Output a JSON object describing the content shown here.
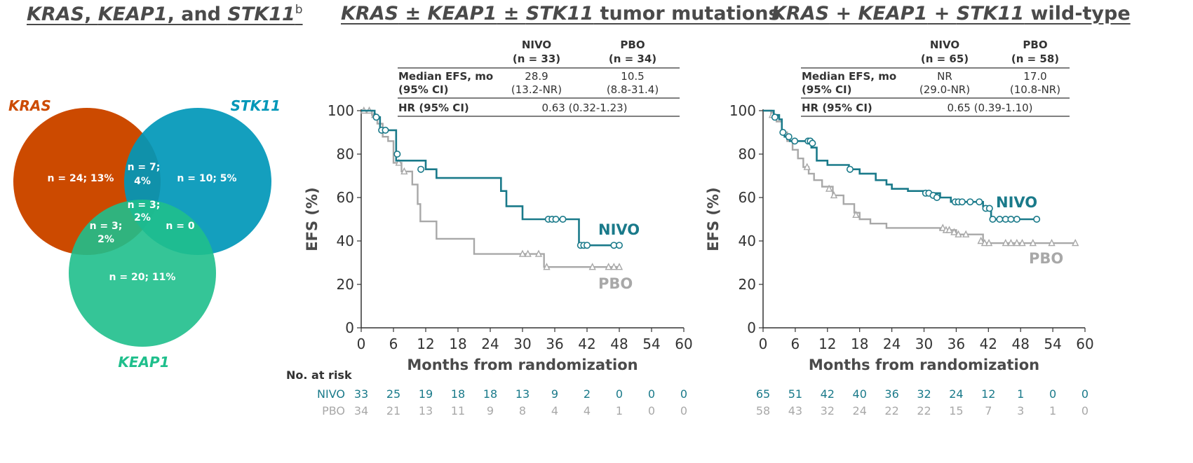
{
  "titles": {
    "venn": {
      "p1": "KRAS",
      "s1": ", ",
      "p2": "KEAP1",
      "s2": ", and ",
      "p3": "STK11",
      "sup": "b"
    },
    "km1": {
      "p1": "KRAS",
      "s1": " ± ",
      "p2": "KEAP1",
      "s2": " ± ",
      "p3": "STK11",
      "s3": " tumor mutations"
    },
    "km2": {
      "p1": "KRAS",
      "s1": " + ",
      "p2": "KEAP1",
      "s2": " + ",
      "p3": "STK11",
      "s3": " wild-type"
    }
  },
  "venn": {
    "labels": {
      "kras": "KRAS",
      "stk11": "STK11",
      "keap1": "KEAP1"
    },
    "regions": {
      "kras_only": "n = 24; 13%",
      "stk11_only": "n = 10; 5%",
      "keap1_only": "n = 20; 11%",
      "kras_stk11_a": "n = 7;",
      "kras_stk11_b": "4%",
      "all3_a": "n = 3;",
      "all3_b": "2%",
      "kras_keap1_a": "n = 3;",
      "kras_keap1_b": "2%",
      "stk11_keap1": "n = 0"
    },
    "colors": {
      "kras": "#cc4a00",
      "stk11": "#0097b8",
      "keap1": "#1fbf8c"
    }
  },
  "colors": {
    "nivo": "#1a7a8a",
    "pbo": "#a8a8a8"
  },
  "chart_data": [
    {
      "type": "line",
      "xlabel": "Months from randomization",
      "ylabel": "EFS (%)",
      "xlim": [
        0,
        60
      ],
      "ylim": [
        0,
        100
      ],
      "xticks": [
        0,
        6,
        12,
        18,
        24,
        30,
        36,
        42,
        48,
        54,
        60
      ],
      "yticks": [
        0,
        20,
        40,
        60,
        80,
        100
      ],
      "table": {
        "headers": [
          "NIVO",
          "PBO"
        ],
        "ns": [
          "(n = 33)",
          "(n = 34)"
        ],
        "row1_label_a": "Median EFS, mo",
        "row1_label_b": "(95% CI)",
        "median": [
          "28.9",
          "10.5"
        ],
        "ci": [
          "(13.2-NR)",
          "(8.8-31.4)"
        ],
        "hr_label": "HR (95% CI)",
        "hr": "0.63 (0.32-1.23)"
      },
      "series": [
        {
          "name": "NIVO",
          "x": [
            0,
            2,
            2.5,
            3.5,
            6,
            6.5,
            6.5,
            12,
            14,
            23,
            26,
            27,
            30,
            40,
            40.5,
            48
          ],
          "y": [
            100,
            100,
            97,
            91,
            91,
            80,
            77,
            73,
            69,
            69,
            63,
            56,
            50,
            50,
            38,
            38
          ],
          "censor_x": [
            2.8,
            3.8,
            4.5,
            6.7,
            11.1,
            34.8,
            35.5,
            36.2,
            37.5,
            40.8,
            41.4,
            42,
            47,
            48
          ],
          "censor_y": [
            97,
            91,
            91,
            80,
            73,
            50,
            50,
            50,
            50,
            38,
            38,
            38,
            38,
            38
          ]
        },
        {
          "name": "PBO",
          "x": [
            0,
            1.2,
            2,
            3,
            4,
            5,
            6,
            7.5,
            9.5,
            10.5,
            11,
            14,
            21,
            32,
            34,
            48
          ],
          "y": [
            100,
            100,
            98,
            94,
            88,
            86,
            76,
            72,
            66,
            57,
            49,
            41,
            34,
            34,
            28,
            28
          ],
          "censor_x": [
            0.5,
            1.5,
            2.5,
            7,
            8,
            30,
            31,
            33,
            34.5,
            43,
            46,
            47,
            48
          ],
          "censor_y": [
            100,
            100,
            98,
            76,
            72,
            34,
            34,
            34,
            28,
            28,
            28,
            28,
            28
          ]
        }
      ],
      "risk": {
        "header": "No. at risk",
        "nivo_label": "NIVO",
        "pbo_label": "PBO",
        "nivo": [
          "33",
          "25",
          "19",
          "18",
          "18",
          "13",
          "9",
          "2",
          "0",
          "0",
          "0"
        ],
        "pbo": [
          "34",
          "21",
          "13",
          "11",
          "9",
          "8",
          "4",
          "4",
          "1",
          "0",
          "0"
        ]
      }
    },
    {
      "type": "line",
      "xlabel": "Months from randomization",
      "ylabel": "EFS (%)",
      "xlim": [
        0,
        60
      ],
      "ylim": [
        0,
        100
      ],
      "xticks": [
        0,
        6,
        12,
        18,
        24,
        30,
        36,
        42,
        48,
        54,
        60
      ],
      "yticks": [
        0,
        20,
        40,
        60,
        80,
        100
      ],
      "table": {
        "headers": [
          "NIVO",
          "PBO"
        ],
        "ns": [
          "(n = 65)",
          "(n = 58)"
        ],
        "row1_label_a": "Median EFS, mo",
        "row1_label_b": "(95% CI)",
        "median": [
          "NR",
          "17.0"
        ],
        "ci": [
          "(29.0-NR)",
          "(10.8-NR)"
        ],
        "hr_label": "HR (95% CI)",
        "hr": "0.65 (0.39-1.10)"
      },
      "series": [
        {
          "name": "NIVO",
          "x": [
            0,
            1,
            2,
            3,
            3.5,
            4,
            4.5,
            5,
            8,
            9,
            10,
            12,
            16,
            18,
            21,
            23,
            24,
            27,
            30,
            33,
            35,
            40,
            41,
            42,
            42.5,
            51
          ],
          "y": [
            100,
            100,
            98,
            96,
            90,
            88,
            87,
            86,
            86,
            83,
            77,
            75,
            73,
            71,
            68,
            66,
            64,
            63,
            62,
            60,
            58,
            58,
            56,
            54,
            50,
            50
          ],
          "censor_x": [
            2.2,
            3.7,
            4.8,
            5.9,
            8.4,
            8.8,
            9.2,
            16.2,
            30.3,
            30.9,
            31.7,
            32.4,
            35.8,
            36.4,
            37.1,
            38.6,
            40.3,
            41.5,
            42.2,
            42.8,
            44.1,
            45.2,
            46.2,
            47.3,
            51
          ],
          "censor_y": [
            97,
            90,
            88,
            86,
            86,
            86,
            85,
            73,
            62,
            62,
            61,
            60,
            58,
            58,
            58,
            58,
            58,
            55,
            55,
            50,
            50,
            50,
            50,
            50,
            50
          ]
        },
        {
          "name": "PBO",
          "x": [
            0,
            1.5,
            2.5,
            3.5,
            4.5,
            5.5,
            6.5,
            7.5,
            8.5,
            9.5,
            11,
            13,
            15,
            17,
            18,
            20,
            23,
            33,
            36,
            41,
            58
          ],
          "y": [
            100,
            98,
            95,
            90,
            86,
            82,
            78,
            74,
            71,
            68,
            65,
            61,
            57,
            53,
            50,
            48,
            46,
            45,
            43,
            39,
            39
          ],
          "censor_x": [
            1.7,
            8.2,
            12.3,
            13.2,
            17.3,
            33.5,
            34.1,
            34.7,
            35.6,
            36.4,
            37.8,
            40.6,
            41.3,
            42.1,
            45.2,
            46.2,
            47.3,
            48.3,
            50.3,
            53.8,
            58.2
          ],
          "censor_y": [
            98,
            74,
            64,
            61,
            52,
            46,
            45,
            45,
            44,
            43,
            43,
            40,
            39,
            39,
            39,
            39,
            39,
            39,
            39,
            39,
            39
          ]
        }
      ],
      "risk": {
        "nivo": [
          "65",
          "51",
          "42",
          "40",
          "36",
          "32",
          "24",
          "12",
          "1",
          "0",
          "0"
        ],
        "pbo": [
          "58",
          "43",
          "32",
          "24",
          "22",
          "22",
          "15",
          "7",
          "3",
          "1",
          "0"
        ]
      }
    }
  ]
}
